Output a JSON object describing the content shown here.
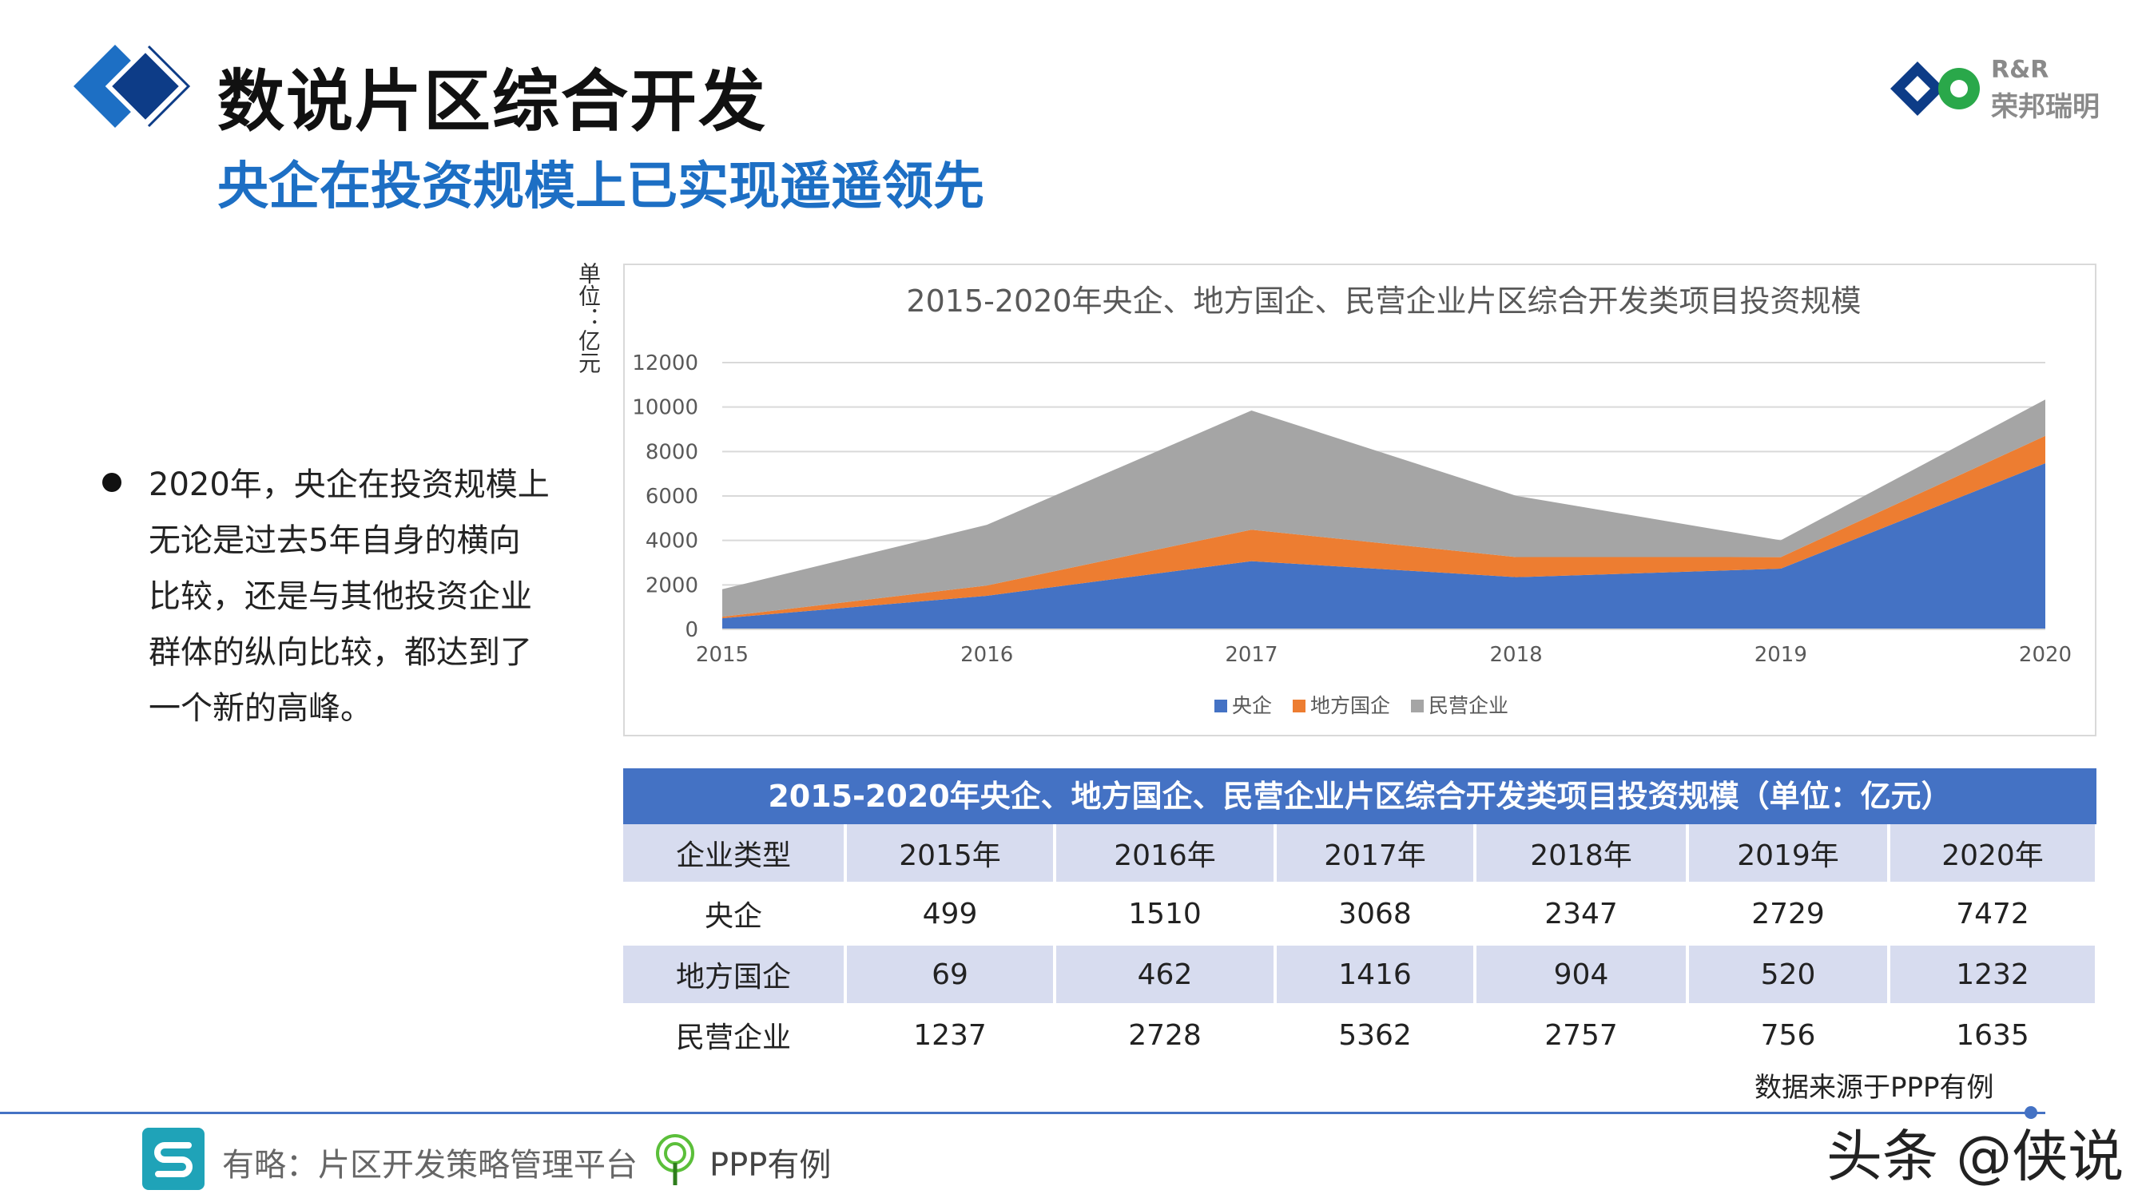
{
  "header": {
    "title": "数说片区综合开发",
    "subtitle": "央企在投资规模上已实现遥遥领先"
  },
  "brand": {
    "en": "R&R",
    "cn": "荣邦瑞明"
  },
  "unit_label": "单位：亿元",
  "bullet": {
    "lines": [
      "2020年，央企在投资规模上",
      "无论是过去5年自身的横向",
      "比较，还是与其他投资企业",
      "群体的纵向比较，都达到了",
      "一个新的高峰。"
    ]
  },
  "chart_data": {
    "type": "area",
    "stacked": true,
    "title": "2015-2020年央企、地方国企、民营企业片区综合开发类项目投资规模",
    "x": [
      "2015",
      "2016",
      "2017",
      "2018",
      "2019",
      "2020"
    ],
    "ylim": [
      0,
      12000
    ],
    "yticks": [
      "12000",
      "10000",
      "8000",
      "6000",
      "4000",
      "2000",
      "0"
    ],
    "ytick_values": [
      12000,
      10000,
      8000,
      6000,
      4000,
      2000,
      0
    ],
    "grid": true,
    "legend": "bottom",
    "series": [
      {
        "name": "央企",
        "color": "#4472c4",
        "values": [
          499,
          1510,
          3068,
          2347,
          2729,
          7472
        ]
      },
      {
        "name": "地方国企",
        "color": "#ed7d31",
        "values": [
          69,
          462,
          1416,
          904,
          520,
          1232
        ]
      },
      {
        "name": "民营企业",
        "color": "#a5a5a5",
        "values": [
          1237,
          2728,
          5362,
          2757,
          756,
          1635
        ]
      }
    ]
  },
  "table": {
    "title": "2015-2020年央企、地方国企、民营企业片区综合开发类项目投资规模（单位：亿元）",
    "headers": [
      "企业类型",
      "2015年",
      "2016年",
      "2017年",
      "2018年",
      "2019年",
      "2020年"
    ],
    "rows": [
      [
        "央企",
        "499",
        "1510",
        "3068",
        "2347",
        "2729",
        "7472"
      ],
      [
        "地方国企",
        "69",
        "462",
        "1416",
        "904",
        "520",
        "1232"
      ],
      [
        "民营企业",
        "1237",
        "2728",
        "5362",
        "2757",
        "756",
        "1635"
      ]
    ]
  },
  "source": "数据来源于PPP有例",
  "footer": {
    "left": "有略：片区开发策略管理平台",
    "ppp": "PPP有例",
    "watermark": "头条 @侠说"
  }
}
